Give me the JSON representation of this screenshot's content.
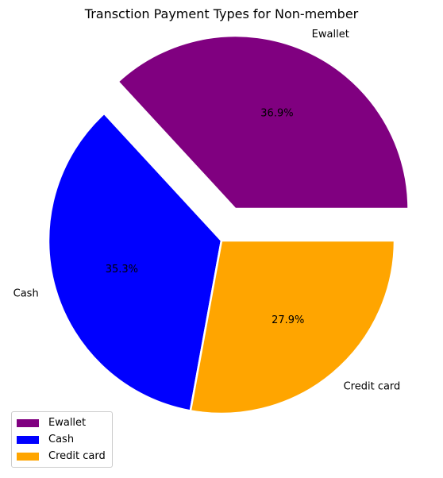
{
  "chart_data": {
    "type": "pie",
    "title": "Transction Payment Types for Non-member",
    "slices": [
      {
        "label": "Ewallet",
        "value": 36.9,
        "pct_label": "36.9%",
        "color": "#800080",
        "exploded": true
      },
      {
        "label": "Cash",
        "value": 35.3,
        "pct_label": "35.3%",
        "color": "#0000ff",
        "exploded": false
      },
      {
        "label": "Credit card",
        "value": 27.9,
        "pct_label": "27.9%",
        "color": "#ffa500",
        "exploded": false
      }
    ],
    "legend_placement": "lower-left",
    "start_angle_deg": 0,
    "direction": "counterclockwise"
  }
}
